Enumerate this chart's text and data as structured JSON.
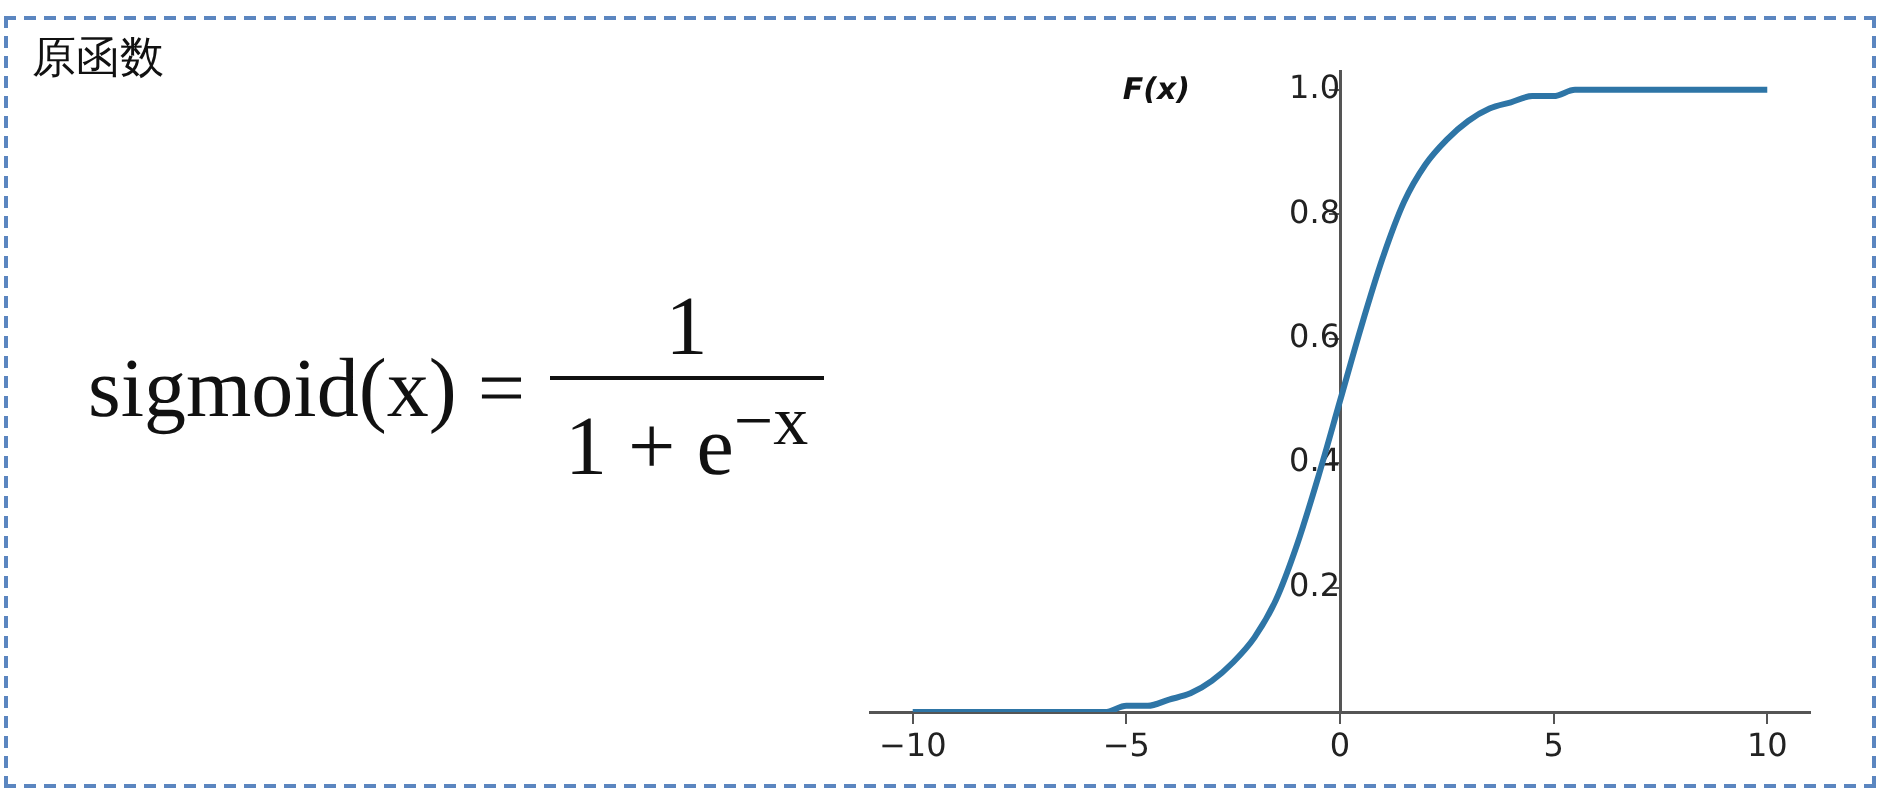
{
  "chart_data": {
    "type": "line",
    "title": "原函数",
    "ylabel": "F(x)",
    "annotations": [
      "sigmoid(x) =",
      "1",
      "1 + e$^{−x}$"
    ],
    "x": [
      -10,
      -9.5,
      -9,
      -8.5,
      -8,
      -7.5,
      -7,
      -6.5,
      -6,
      -5.5,
      -5,
      -4.5,
      -4,
      -3.5,
      -3,
      -2.5,
      -2,
      -1.5,
      -1,
      -0.5,
      0,
      0.5,
      1,
      1.5,
      2,
      2.5,
      3,
      3.5,
      4,
      4.5,
      5,
      5.5,
      6,
      6.5,
      7,
      7.5,
      8,
      8.5,
      9,
      9.5,
      10
    ],
    "series": [
      {
        "color": "#2e75a6",
        "values": [
          0.0,
          0.0,
          0.0,
          0.0,
          0.0,
          0.0,
          0.0,
          0.0,
          0.0,
          0.0,
          0.01,
          0.01,
          0.02,
          0.03,
          0.05,
          0.08,
          0.12,
          0.18,
          0.27,
          0.38,
          0.5,
          0.62,
          0.73,
          0.82,
          0.88,
          0.92,
          0.95,
          0.97,
          0.98,
          0.99,
          0.99,
          1.0,
          1.0,
          1.0,
          1.0,
          1.0,
          1.0,
          1.0,
          1.0,
          1.0,
          1.0
        ]
      }
    ],
    "xlim": [
      -11,
      11
    ],
    "ylim": [
      0,
      1.03
    ],
    "xticks": [
      -10,
      -5,
      0,
      5,
      10
    ],
    "yticks": [
      0.2,
      0.4,
      0.6,
      0.8,
      {
        "value": 1,
        "label": "1.0"
      }
    ],
    "grid": false,
    "legend": false,
    "marker": "none",
    "line_style": "solid"
  }
}
